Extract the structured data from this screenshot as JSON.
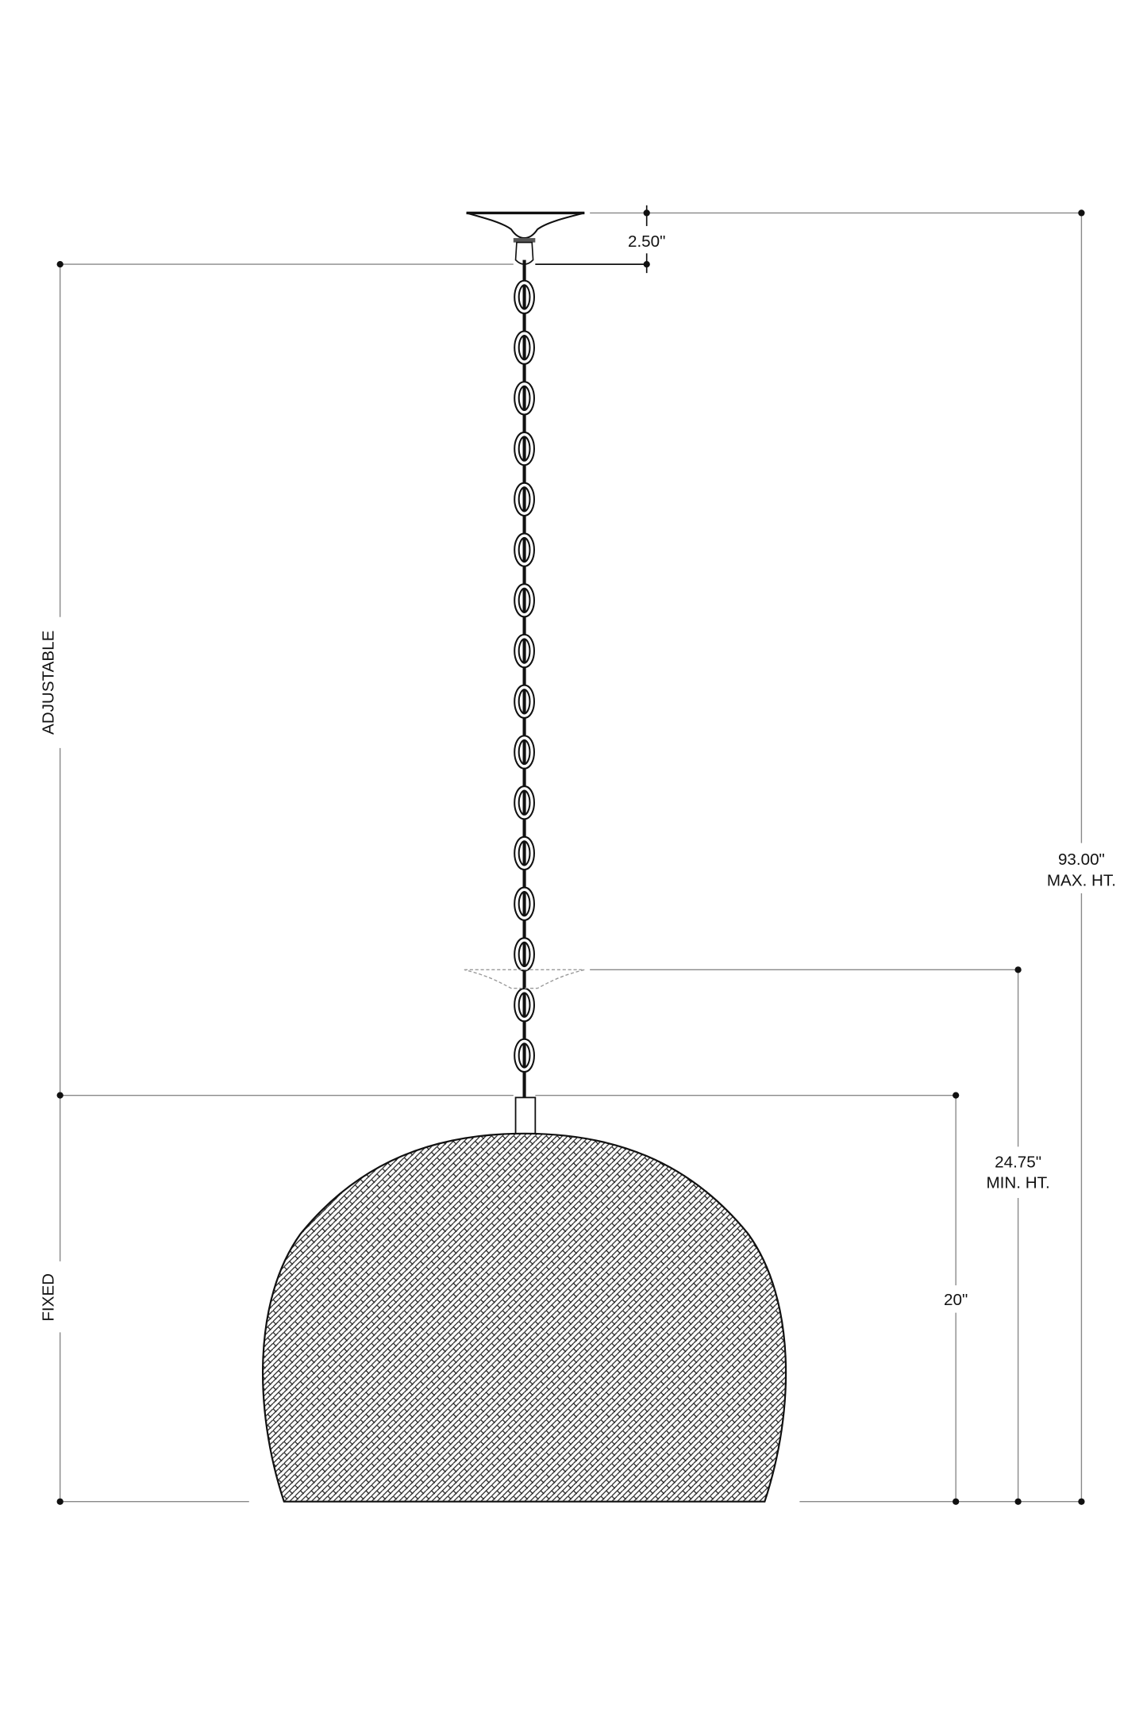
{
  "drawing": {
    "canopy_height": "2.50\"",
    "max_height_value": "93.00\"",
    "max_height_label": "MAX. HT.",
    "min_height_value": "24.75\"",
    "min_height_label": "MIN. HT.",
    "fixed_height": "20\"",
    "adjustable_label": "ADJUSTABLE",
    "fixed_label": "FIXED"
  },
  "colors": {
    "line": "#111111",
    "dimension_line": "#888888",
    "background": "#ffffff"
  }
}
